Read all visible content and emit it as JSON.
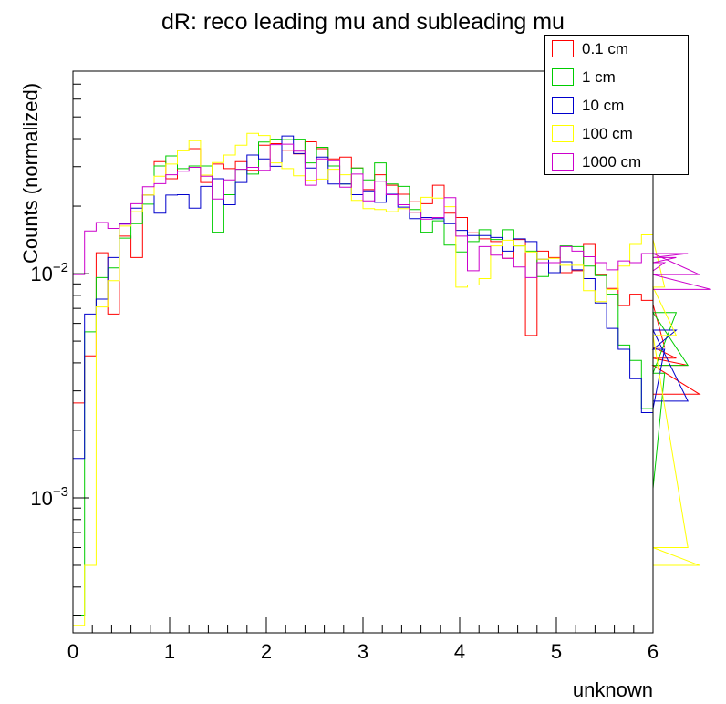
{
  "chart_data": {
    "type": "histogram-step",
    "title": "dR: reco leading mu and subleading mu",
    "xlabel": "unknown",
    "ylabel": "Counts (normalized)",
    "xlim": [
      0,
      6
    ],
    "ylim": [
      0.00025,
      0.08
    ],
    "yscale": "log",
    "bin_width": 0.12,
    "legend_position": "top-right",
    "x_ticks": [
      "0",
      "1",
      "2",
      "3",
      "4",
      "5",
      "6"
    ],
    "y_tick_labels": [
      {
        "value": 0.001,
        "base": "10",
        "exp": "−3"
      },
      {
        "value": 0.01,
        "base": "10",
        "exp": "−2"
      }
    ],
    "series": [
      {
        "name": "0.1 cm",
        "color": "#ff0000",
        "values": [
          0.00265,
          0.0043,
          0.0124,
          0.0066,
          0.0147,
          0.0118,
          0.0224,
          0.0316,
          0.0265,
          0.0355,
          0.0361,
          0.0255,
          0.0308,
          0.0294,
          0.0316,
          0.0289,
          0.0374,
          0.038,
          0.0355,
          0.0342,
          0.0387,
          0.0361,
          0.0325,
          0.0331,
          0.0296,
          0.0237,
          0.0276,
          0.0248,
          0.0226,
          0.0209,
          0.0205,
          0.0248,
          0.0186,
          0.0178,
          0.0152,
          0.0143,
          0.0139,
          0.0117,
          0.0142,
          0.0053,
          0.0126,
          0.0118,
          0.0101,
          0.0103,
          0.0135,
          0.0099,
          0.0086,
          0.0072,
          0.0081,
          0.0076,
          0.0073,
          0.0047,
          0.0042,
          0.0039,
          0.0029
        ]
      },
      {
        "name": "1 cm",
        "color": "#00cc00",
        "values": [
          0.0003,
          0.0055,
          0.0096,
          0.0106,
          0.0144,
          0.0167,
          0.0204,
          0.0302,
          0.0335,
          0.0294,
          0.0302,
          0.0302,
          0.0153,
          0.0225,
          0.0292,
          0.0278,
          0.0386,
          0.0398,
          0.0396,
          0.0398,
          0.0312,
          0.0366,
          0.0302,
          0.0251,
          0.0296,
          0.0262,
          0.0312,
          0.0251,
          0.0245,
          0.0193,
          0.0153,
          0.0172,
          0.0134,
          0.0125,
          0.0139,
          0.0157,
          0.0142,
          0.0157,
          0.0133,
          0.0126,
          0.0097,
          0.0101,
          0.0133,
          0.0132,
          0.0108,
          0.0098,
          0.0081,
          0.0048,
          0.0041,
          0.0025,
          0.0011,
          0.0036,
          0.0067,
          0.0039
        ]
      },
      {
        "name": "10 cm",
        "color": "#0000cc",
        "values": [
          0.0015,
          0.0066,
          0.0077,
          0.0118,
          0.0167,
          0.0196,
          0.0224,
          0.0186,
          0.0224,
          0.0225,
          0.0196,
          0.0245,
          0.0265,
          0.0203,
          0.0255,
          0.0338,
          0.0325,
          0.0301,
          0.0411,
          0.0343,
          0.0296,
          0.0331,
          0.0251,
          0.0251,
          0.0225,
          0.0234,
          0.0208,
          0.0226,
          0.0198,
          0.0176,
          0.0178,
          0.0176,
          0.0167,
          0.0156,
          0.0148,
          0.0148,
          0.0145,
          0.0126,
          0.0143,
          0.0139,
          0.0116,
          0.0101,
          0.0113,
          0.0104,
          0.0095,
          0.0074,
          0.0057,
          0.0046,
          0.0034,
          0.0024,
          0.0025,
          0.0046,
          0.0056,
          0.0027
        ]
      },
      {
        "name": "100 cm",
        "color": "#ffff00",
        "values": [
          0.00027,
          0.0005,
          0.0071,
          0.0093,
          0.0163,
          0.0189,
          0.0224,
          0.0272,
          0.0308,
          0.0353,
          0.0392,
          0.0275,
          0.0313,
          0.0338,
          0.0374,
          0.0422,
          0.0413,
          0.0312,
          0.0294,
          0.0273,
          0.0261,
          0.0264,
          0.0292,
          0.0276,
          0.0212,
          0.0195,
          0.0193,
          0.0189,
          0.0195,
          0.0188,
          0.0219,
          0.0217,
          0.0199,
          0.0087,
          0.0089,
          0.0095,
          0.0133,
          0.0141,
          0.0133,
          0.0125,
          0.0116,
          0.0117,
          0.0109,
          0.0109,
          0.0084,
          0.0075,
          0.0085,
          0.0108,
          0.0135,
          0.0149,
          0.0142,
          0.0087,
          0.0053,
          0.0006,
          0.0005
        ]
      },
      {
        "name": "1000 cm",
        "color": "#cc00cc",
        "values": [
          0.0099,
          0.0155,
          0.0169,
          0.0159,
          0.0166,
          0.0205,
          0.0244,
          0.0252,
          0.0276,
          0.0286,
          0.0298,
          0.0272,
          0.0215,
          0.0262,
          0.0292,
          0.0298,
          0.0289,
          0.0376,
          0.0378,
          0.0352,
          0.0248,
          0.0325,
          0.0319,
          0.0243,
          0.0278,
          0.0211,
          0.0258,
          0.0225,
          0.0203,
          0.0188,
          0.0175,
          0.0178,
          0.0218,
          0.0147,
          0.0103,
          0.0132,
          0.0121,
          0.0117,
          0.0107,
          0.0096,
          0.0112,
          0.0112,
          0.0132,
          0.0126,
          0.0119,
          0.0112,
          0.0104,
          0.0114,
          0.0112,
          0.0123,
          0.0103,
          0.0112,
          0.0118,
          0.0123,
          0.0099,
          0.0085
        ]
      }
    ]
  }
}
